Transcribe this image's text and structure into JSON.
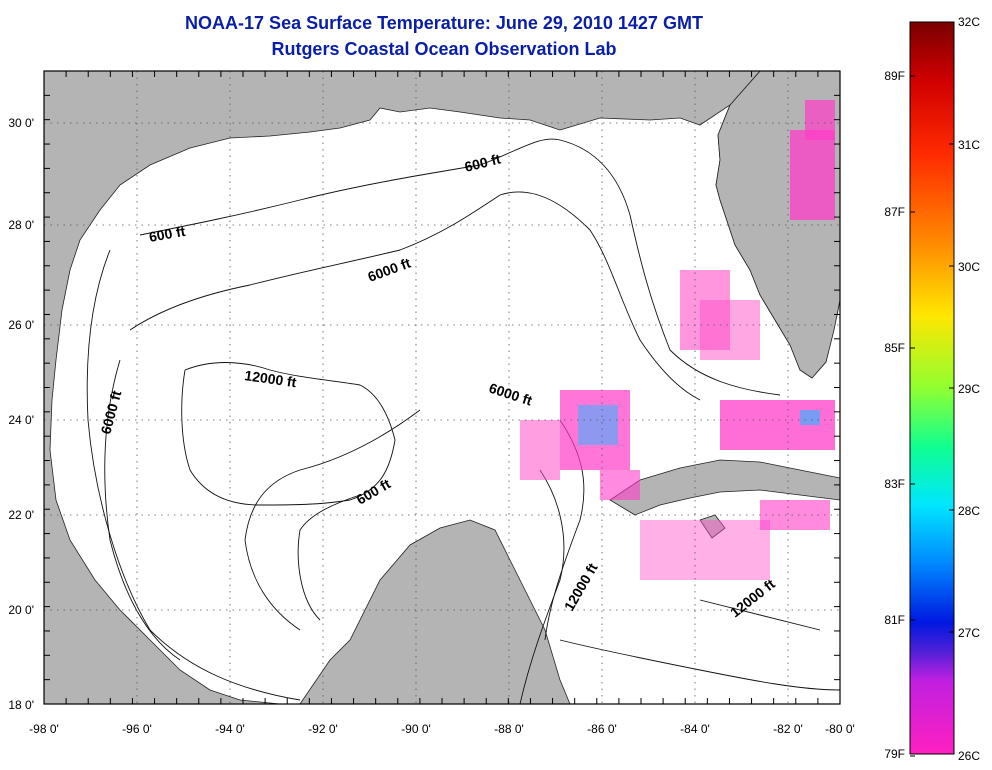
{
  "title": {
    "line1": "NOAA-17 Sea Surface Temperature:  June 29, 2010 1427 GMT",
    "line2": "Rutgers Coastal Ocean Observation Lab"
  },
  "map": {
    "lon_range": [
      -98,
      -80
    ],
    "lat_range": [
      18,
      31
    ],
    "lon_ticks": [
      "-98 0'",
      "-96 0'",
      "-94 0'",
      "-92 0'",
      "-90 0'",
      "-88 0'",
      "-86 0'",
      "-84 0'",
      "-82 0'",
      "-80 0'"
    ],
    "lat_ticks": [
      "18 0'",
      "20 0'",
      "22 0'",
      "24 0'",
      "26 0'",
      "28 0'",
      "30 0'"
    ],
    "grid": "dotted",
    "land_color": "#b4b4b4",
    "water_color": "#ffffff",
    "contour_labels": [
      "600 ft",
      "600 ft",
      "600 ft",
      "6000 ft",
      "6000 ft",
      "6000 ft",
      "12000 ft",
      "12000 ft",
      "12000 ft"
    ]
  },
  "colorbar": {
    "celsius": [
      "32C",
      "31C",
      "30C",
      "29C",
      "28C",
      "27C",
      "26C"
    ],
    "fahrenheit": [
      "89F",
      "87F",
      "85F",
      "83F",
      "81F",
      "79F"
    ],
    "range_c": [
      26,
      32
    ]
  }
}
